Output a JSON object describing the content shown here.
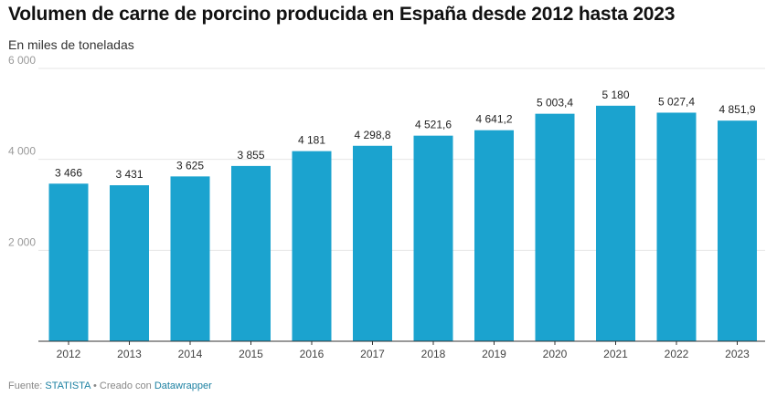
{
  "title": "Volumen de carne de porcino producida en España desde 2012 hasta 2023",
  "subtitle": "En miles de toneladas",
  "footer": {
    "source_label": "Fuente:",
    "source_name": "STATISTA",
    "separator": "•",
    "created_label": "Creado con",
    "tool_name": "Datawrapper"
  },
  "colors": {
    "bar": "#1ba3cf",
    "grid": "#e6e6e6",
    "axis": "#333333",
    "link": "#1d81a2"
  },
  "chart_data": {
    "type": "bar",
    "title": "Volumen de carne de porcino producida en España desde 2012 hasta 2023",
    "subtitle": "En miles de toneladas",
    "categories": [
      "2012",
      "2013",
      "2014",
      "2015",
      "2016",
      "2017",
      "2018",
      "2019",
      "2020",
      "2021",
      "2022",
      "2023"
    ],
    "values": [
      3466,
      3431,
      3625,
      3855,
      4181,
      4298.8,
      4521.6,
      4641.2,
      5003.4,
      5180,
      5027.4,
      4851.9
    ],
    "value_labels": [
      "3 466",
      "3 431",
      "3 625",
      "3 855",
      "4 181",
      "4 298,8",
      "4 521,6",
      "4 641,2",
      "5 003,4",
      "5 180",
      "5 027,4",
      "4 851,9"
    ],
    "ylim": [
      0,
      6000
    ],
    "yticks": [
      2000,
      4000,
      6000
    ],
    "ytick_labels": [
      "2 000",
      "4 000",
      "6 000"
    ],
    "grid": true,
    "xlabel": "",
    "ylabel": ""
  }
}
